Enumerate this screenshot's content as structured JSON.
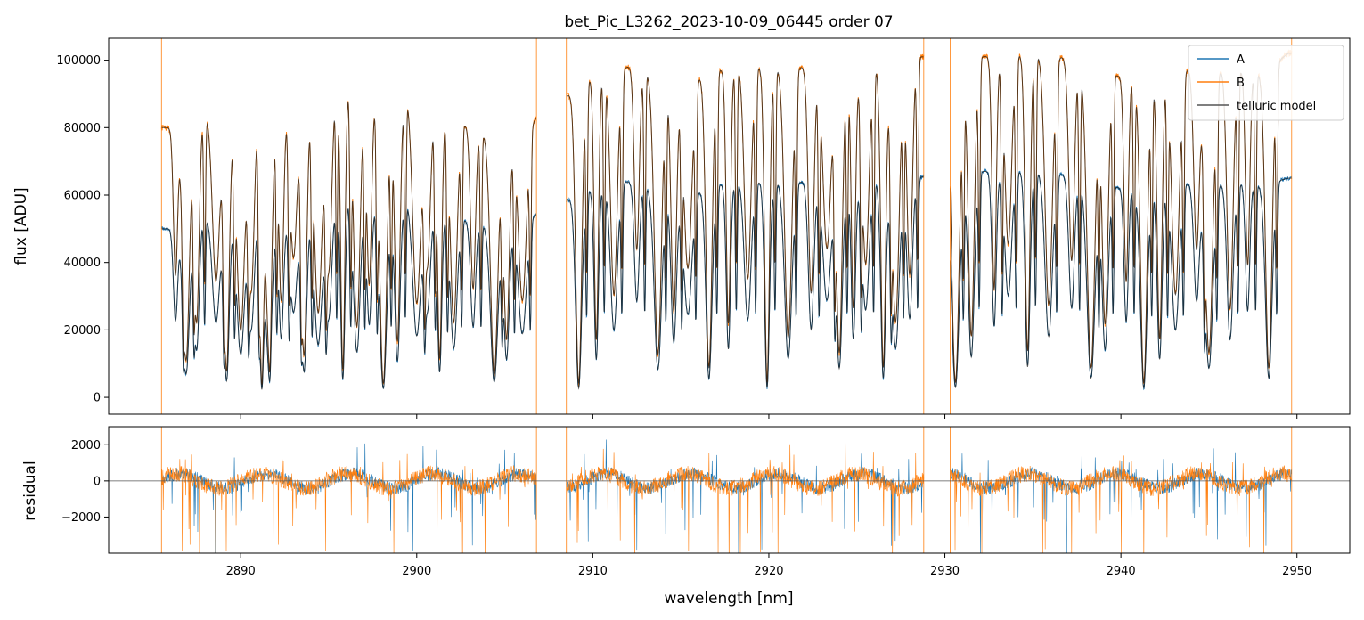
{
  "chart_data": [
    {
      "type": "line",
      "panel": "top",
      "title": "bet_Pic_L3262_2023-10-09_06445  order 07",
      "xlabel": "",
      "ylabel": "flux [ADU]",
      "xlim": [
        2882.5,
        2953.0
      ],
      "ylim": [
        -5000,
        106500
      ],
      "yticks": [
        0,
        20000,
        40000,
        60000,
        80000,
        100000
      ],
      "ytick_labels": [
        "0",
        "20000",
        "40000",
        "60000",
        "80000",
        "100000"
      ],
      "legend": {
        "placement": "top-right",
        "entries": [
          "A",
          "B",
          "telluric model"
        ]
      },
      "colors": {
        "A": "#1f77b4",
        "B": "#ff7f0e",
        "telluric model": "#3a3a3a"
      },
      "segments": [
        [
          2885.5,
          2906.8
        ],
        [
          2908.5,
          2928.8
        ],
        [
          2930.3,
          2949.7
        ]
      ],
      "series": [
        {
          "name": "A",
          "continuum_peaks": [
            [
              2886,
              50000
            ],
            [
              2890,
              57000
            ],
            [
              2893,
              56000
            ],
            [
              2896,
              60000
            ],
            [
              2899,
              60000
            ],
            [
              2903,
              52000
            ],
            [
              2905,
              50000
            ],
            [
              2910,
              62000
            ],
            [
              2912,
              64000
            ],
            [
              2915,
              60000
            ],
            [
              2918,
              64000
            ],
            [
              2921,
              64000
            ],
            [
              2926,
              64000
            ],
            [
              2928,
              65000
            ],
            [
              2932,
              67000
            ],
            [
              2936,
              67000
            ],
            [
              2940,
              62000
            ],
            [
              2945,
              64000
            ],
            [
              2948,
              63000
            ],
            [
              2949.5,
              65000
            ]
          ]
        },
        {
          "name": "B",
          "continuum_peaks": [
            [
              2886,
              80000
            ],
            [
              2890,
              88000
            ],
            [
              2893,
              92000
            ],
            [
              2896,
              94000
            ],
            [
              2899,
              92000
            ],
            [
              2903,
              80000
            ],
            [
              2905,
              76000
            ],
            [
              2910,
              95000
            ],
            [
              2912,
              98000
            ],
            [
              2915,
              94000
            ],
            [
              2918,
              98000
            ],
            [
              2921,
              98000
            ],
            [
              2926,
              98000
            ],
            [
              2928,
              101000
            ],
            [
              2932,
              101000
            ],
            [
              2936,
              102000
            ],
            [
              2940,
              95000
            ],
            [
              2945,
              98000
            ],
            [
              2948,
              96000
            ],
            [
              2949.5,
              102000
            ]
          ]
        },
        {
          "name": "telluric model",
          "tracks": [
            "A",
            "B"
          ]
        }
      ],
      "absorption_lines_nm": [
        2886.3,
        2886.9,
        2887.5,
        2888.6,
        2889.2,
        2890.0,
        2890.6,
        2891.2,
        2891.6,
        2892.3,
        2893.0,
        2893.6,
        2894.4,
        2895.0,
        2895.8,
        2896.6,
        2897.3,
        2898.1,
        2898.9,
        2900.0,
        2900.6,
        2901.3,
        2902.1,
        2903.2,
        2904.4,
        2905.1,
        2906.0,
        2909.2,
        2910.2,
        2911.2,
        2912.5,
        2913.7,
        2914.6,
        2915.4,
        2916.6,
        2917.7,
        2918.8,
        2919.9,
        2921.1,
        2922.4,
        2923.3,
        2924.0,
        2924.8,
        2925.5,
        2926.5,
        2927.2,
        2928.0,
        2930.6,
        2931.5,
        2932.8,
        2933.6,
        2934.7,
        2935.9,
        2937.2,
        2938.3,
        2939.1,
        2940.3,
        2941.3,
        2942.2,
        2943.1,
        2944.3,
        2945.0,
        2946.2,
        2947.2,
        2948.4
      ]
    },
    {
      "type": "line",
      "panel": "bottom",
      "title": "",
      "xlabel": "wavelength [nm]",
      "ylabel": "residual",
      "xlim": [
        2882.5,
        2953.0
      ],
      "ylim": [
        -4000,
        3000
      ],
      "xticks": [
        2890,
        2900,
        2910,
        2920,
        2930,
        2940,
        2950
      ],
      "xtick_labels": [
        "2890",
        "2900",
        "2910",
        "2920",
        "2930",
        "2940",
        "2950"
      ],
      "yticks": [
        -2000,
        0,
        2000
      ],
      "ytick_labels": [
        "−2000",
        "0",
        "2000"
      ],
      "reference_line": 0,
      "series": [
        {
          "name": "A",
          "color": "#1f77b4"
        },
        {
          "name": "B",
          "color": "#ff7f0e"
        }
      ]
    }
  ]
}
